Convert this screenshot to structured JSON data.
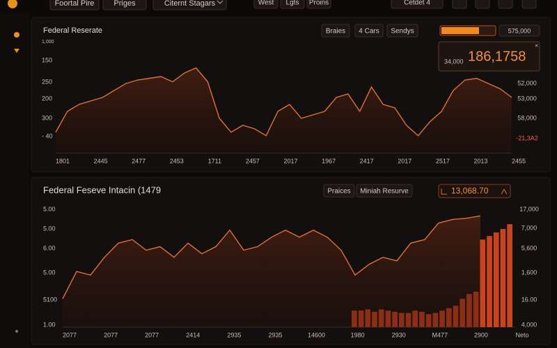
{
  "nav": {
    "tabs": [
      "Foortal Pire",
      "Priges",
      "Citernt Stagars"
    ],
    "center_tabs": [
      "West",
      "Lgts",
      "Proins"
    ],
    "dropdown": "Cetdet 4"
  },
  "panels": [
    {
      "title": "Federal Reserate",
      "buttons": [
        "Braies",
        "4 Cars",
        "Sendys"
      ],
      "readout": "575,000",
      "popup": {
        "sub": "34,000",
        "value": "186,1758"
      },
      "chart": {
        "type": "line",
        "ylim": [
          0,
          100
        ],
        "values": [
          24,
          48,
          56,
          60,
          64,
          72,
          80,
          84,
          86,
          88,
          82,
          92,
          98,
          82,
          40,
          24,
          32,
          28,
          20,
          48,
          56,
          40,
          44,
          48,
          64,
          68,
          48,
          76,
          56,
          52,
          32,
          20,
          36,
          48,
          72,
          84,
          86,
          80,
          74,
          64
        ],
        "left_labels": [
          "1,000",
          "150",
          "250",
          "200",
          "300",
          "- 40"
        ],
        "right_labels": [
          "52,000",
          "53,000",
          "58,000",
          "-21,3A2"
        ],
        "x_labels": [
          "1801",
          "2445",
          "2477",
          "2453",
          "1711",
          "2457",
          "2017",
          "1967",
          "2417",
          "2017",
          "2517",
          "2013",
          "2455"
        ]
      }
    },
    {
      "title": "Federal Feseve Intacin (1479",
      "buttons": [
        "Praices",
        "Miniah Resurve"
      ],
      "readout": "13,068.70",
      "chart": {
        "type": "line-bar",
        "ylim": [
          0,
          100
        ],
        "values": [
          24,
          47,
          44,
          59,
          71,
          74,
          65,
          68,
          59,
          71,
          62,
          68,
          82,
          65,
          68,
          76,
          82,
          76,
          82,
          76,
          65,
          44,
          53,
          59,
          56,
          71,
          74,
          88,
          91,
          92,
          94
        ],
        "bars": [
          14,
          14,
          15,
          13,
          15,
          14,
          13,
          12,
          12,
          14,
          13,
          11,
          12,
          14,
          16,
          18,
          24,
          28,
          30,
          74,
          77,
          80,
          83,
          87
        ],
        "left_labels": [
          "5.00",
          "5.00",
          "6.00",
          "5.00",
          "5100",
          "1.00"
        ],
        "right_labels": [
          "17,000",
          "7,000",
          "5,600",
          "1,600",
          "16.00",
          "4,000"
        ],
        "x_labels": [
          "2077",
          "2077",
          "2077",
          "2414",
          "2935",
          "2935",
          "14600",
          "1980",
          "2930",
          "M477",
          "2900",
          "Neto"
        ]
      }
    }
  ]
}
